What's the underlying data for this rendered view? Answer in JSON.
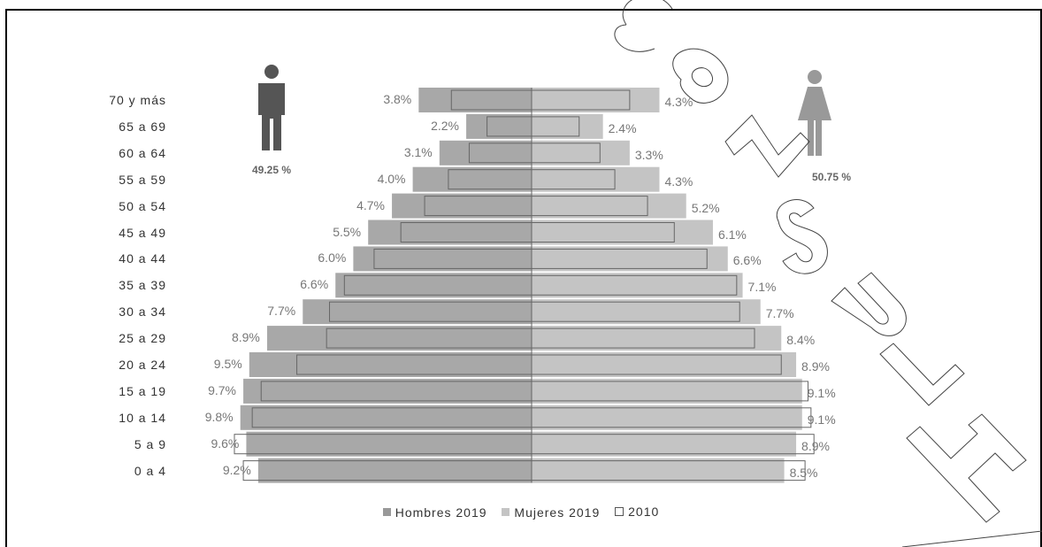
{
  "chart_data": {
    "type": "bar",
    "orientation": "horizontal population pyramid",
    "categories": [
      "70 y más",
      "65 a 69",
      "60 a 64",
      "55 a 59",
      "50 a 54",
      "45 a 49",
      "40 a 44",
      "35 a 39",
      "30 a 34",
      "25 a 29",
      "20 a 24",
      "15 a 19",
      "10 a 14",
      "5 a 9",
      "0 a 4"
    ],
    "series": [
      {
        "name": "Hombres 2019",
        "side": "left",
        "values": [
          3.8,
          2.2,
          3.1,
          4.0,
          4.7,
          5.5,
          6.0,
          6.6,
          7.7,
          8.9,
          9.5,
          9.7,
          9.8,
          9.6,
          9.2
        ],
        "labels": [
          "3.8%",
          "2.2%",
          "3.1%",
          "4.0%",
          "4.7%",
          "5.5%",
          "6.0%",
          "6.6%",
          "7.7%",
          "8.9%",
          "9.5%",
          "9.7%",
          "9.8%",
          "9.6%",
          "9.2%"
        ],
        "color": "#a8a8a8"
      },
      {
        "name": "Mujeres 2019",
        "side": "right",
        "values": [
          4.3,
          2.4,
          3.3,
          4.3,
          5.2,
          6.1,
          6.6,
          7.1,
          7.7,
          8.4,
          8.9,
          9.1,
          9.1,
          8.9,
          8.5
        ],
        "labels": [
          "4.3%",
          "2.4%",
          "3.3%",
          "4.3%",
          "5.2%",
          "6.1%",
          "6.6%",
          "7.1%",
          "7.7%",
          "8.4%",
          "8.9%",
          "9.1%",
          "9.1%",
          "8.9%",
          "8.5%"
        ],
        "color": "#c4c4c4"
      },
      {
        "name": "2010",
        "style": "outline",
        "male_values": [
          2.7,
          1.5,
          2.1,
          2.8,
          3.6,
          4.4,
          5.3,
          6.3,
          6.8,
          6.9,
          7.9,
          9.1,
          9.4,
          10.0,
          9.7
        ],
        "female_values": [
          3.3,
          1.6,
          2.3,
          2.8,
          3.9,
          4.8,
          5.9,
          6.9,
          7.0,
          7.5,
          8.4,
          9.3,
          9.4,
          9.5,
          9.2
        ],
        "color": "#666666"
      }
    ],
    "xlim": [
      0,
      10
    ],
    "male_share": "49.25 %",
    "female_share": "50.75 %",
    "legend": {
      "position": "bottom",
      "items": [
        "Hombres 2019",
        "Mujeres 2019",
        "2010"
      ]
    },
    "grid": false
  },
  "icons": {
    "male": "man-icon",
    "female": "woman-icon"
  },
  "watermark": {
    "text": "CONSULT"
  }
}
